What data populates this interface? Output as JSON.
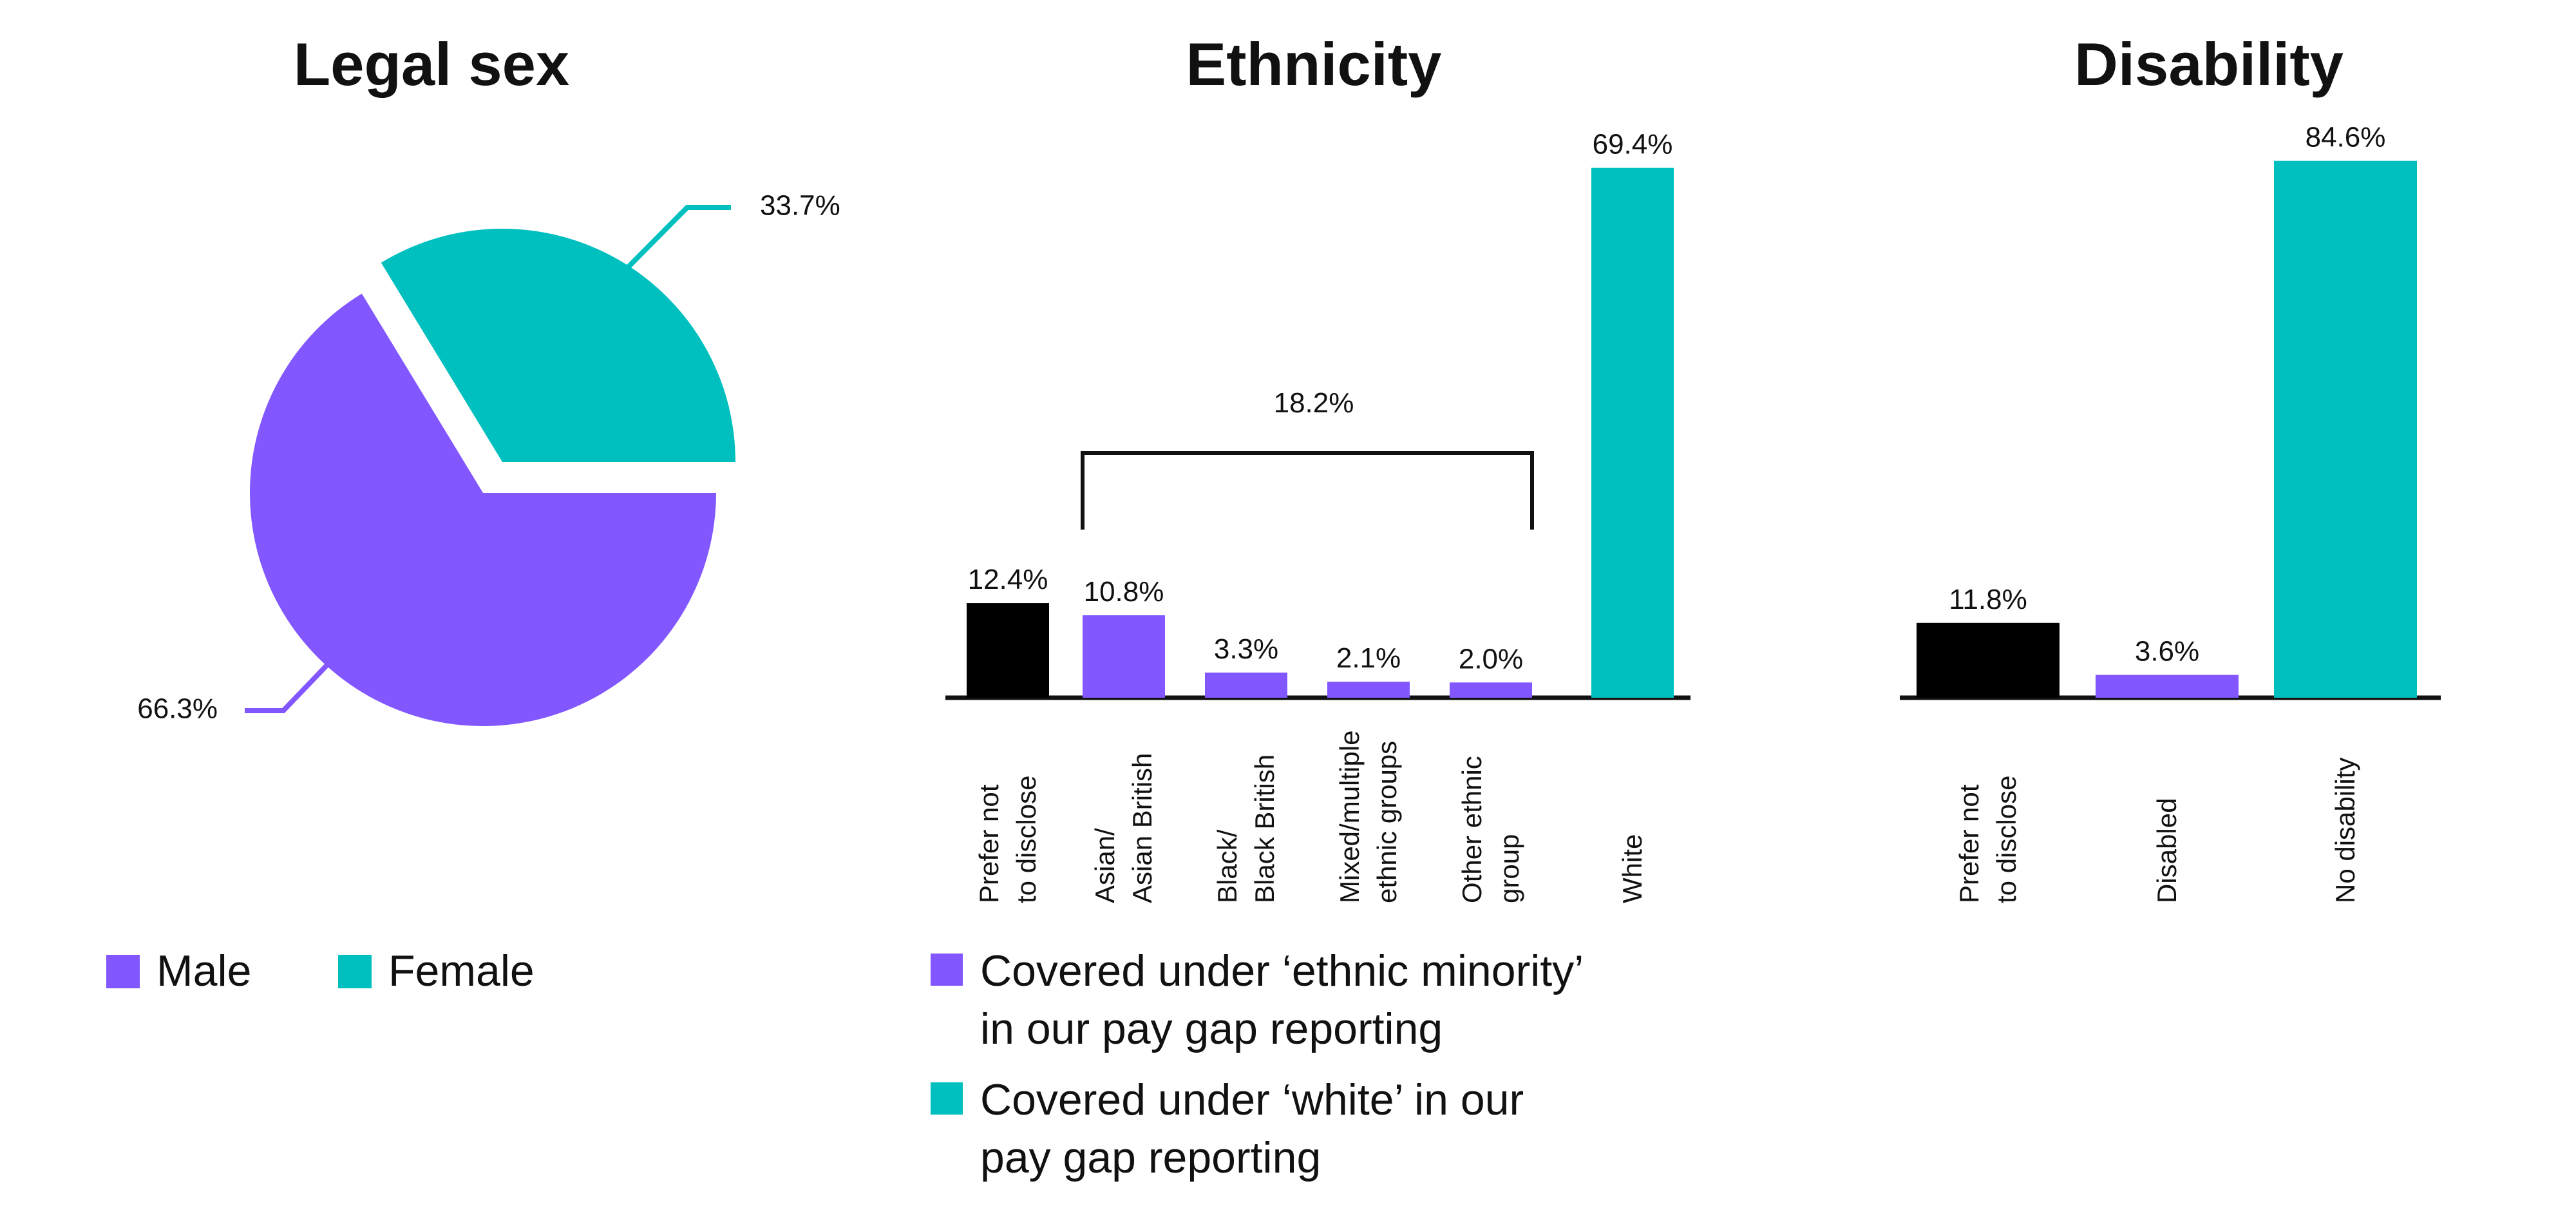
{
  "colors": {
    "purple": "#8257FF",
    "teal": "#00BFBF",
    "black": "#000000"
  },
  "chart_data": [
    {
      "type": "pie",
      "title": "Legal sex",
      "slices": [
        {
          "label": "Male",
          "value": 66.3,
          "display": "66.3%",
          "color": "#8257FF"
        },
        {
          "label": "Female",
          "value": 33.7,
          "display": "33.7%",
          "color": "#00BFBF"
        }
      ],
      "legend": [
        "Male",
        "Female"
      ]
    },
    {
      "type": "bar",
      "title": "Ethnicity",
      "categories": [
        [
          "Prefer not",
          "to disclose"
        ],
        [
          "Asian/",
          "Asian British"
        ],
        [
          "Black/",
          "Black British"
        ],
        [
          "Mixed/multiple",
          "ethnic groups"
        ],
        [
          "Other ethnic",
          "group"
        ],
        [
          "White"
        ]
      ],
      "values": [
        12.4,
        10.8,
        3.3,
        2.1,
        2.0,
        69.4
      ],
      "labels": [
        "12.4%",
        "10.8%",
        "3.3%",
        "2.1%",
        "2.0%",
        "69.4%"
      ],
      "colors": [
        "#000000",
        "#8257FF",
        "#8257FF",
        "#8257FF",
        "#8257FF",
        "#00BFBF"
      ],
      "bracket": {
        "label": "18.2%",
        "from": 1,
        "to": 4
      },
      "legend": [
        {
          "lines": [
            "Covered under ‘ethnic minority’",
            "in our pay gap reporting"
          ],
          "color": "#8257FF"
        },
        {
          "lines": [
            "Covered under ‘white’ in our",
            "pay gap reporting"
          ],
          "color": "#00BFBF"
        }
      ]
    },
    {
      "type": "bar",
      "title": "Disability",
      "categories": [
        [
          "Prefer not",
          "to disclose"
        ],
        [
          "Disabled"
        ],
        [
          "No disability"
        ]
      ],
      "values": [
        11.8,
        3.6,
        84.6
      ],
      "labels": [
        "11.8%",
        "3.6%",
        "84.6%"
      ],
      "colors": [
        "#000000",
        "#8257FF",
        "#00BFBF"
      ]
    }
  ]
}
